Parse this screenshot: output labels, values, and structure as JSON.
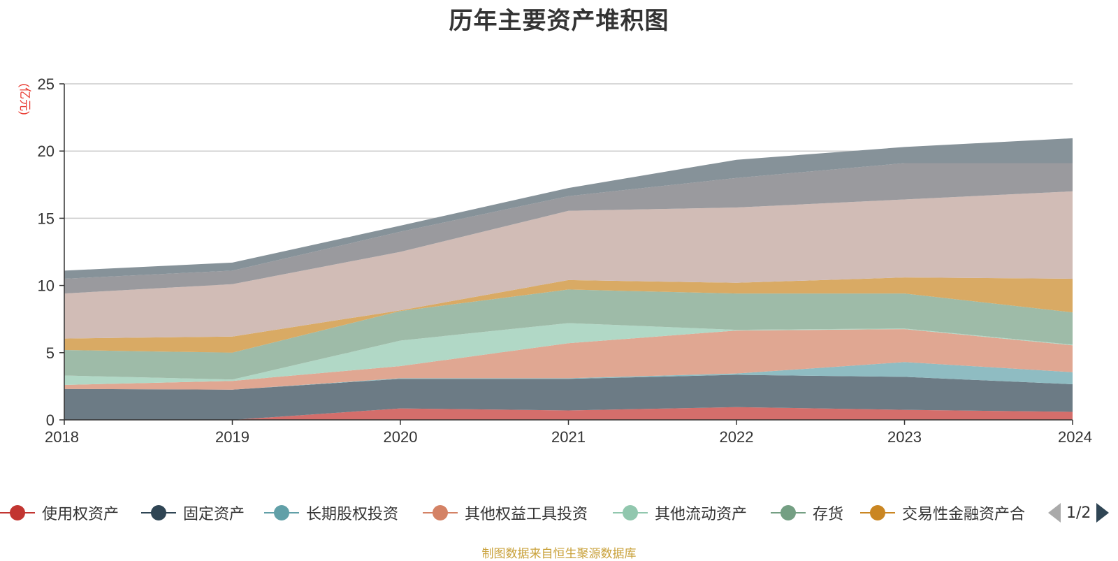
{
  "title": "历年主要资产堆积图",
  "source_note": "制图数据来自恒生聚源数据库",
  "legend_pager": {
    "text": "1/2"
  },
  "chart_data": {
    "type": "area",
    "stacked": true,
    "title": "历年主要资产堆积图",
    "ylabel": "(亿元)",
    "xlabel": "",
    "x": [
      "2018",
      "2019",
      "2020",
      "2021",
      "2022",
      "2023",
      "2024"
    ],
    "ylim": [
      0,
      25
    ],
    "yticks": [
      0,
      5,
      10,
      15,
      20,
      25
    ],
    "grid": true,
    "legend_position": "bottom",
    "series": [
      {
        "name": "使用权资产",
        "color": "#c23531",
        "fill": "#d46e6b",
        "values": [
          0,
          0,
          0.85,
          0.7,
          0.95,
          0.75,
          0.6
        ]
      },
      {
        "name": "固定资产",
        "color": "#2f4554",
        "fill": "#6c7b85",
        "values": [
          2.3,
          2.25,
          2.2,
          2.35,
          2.4,
          2.45,
          2.05
        ]
      },
      {
        "name": "长期股权投资",
        "color": "#61a0a8",
        "fill": "#8fbcc2",
        "values": [
          0,
          0,
          0.05,
          0.05,
          0.1,
          1.1,
          0.9
        ]
      },
      {
        "name": "其他权益工具投资",
        "color": "#d48265",
        "fill": "#e0a792",
        "values": [
          0.3,
          0.65,
          0.9,
          2.6,
          3.2,
          2.45,
          2.0
        ]
      },
      {
        "name": "其他流动资产",
        "color": "#91c7ae",
        "fill": "#b1d8c6",
        "values": [
          0.7,
          0.1,
          1.9,
          1.5,
          0.05,
          0.05,
          0.05
        ]
      },
      {
        "name": "存货",
        "color": "#749f83",
        "fill": "#9ebba8",
        "values": [
          1.9,
          2.0,
          2.2,
          2.5,
          2.7,
          2.6,
          2.4
        ]
      },
      {
        "name": "交易性金融资产合",
        "color": "#ca8622",
        "fill": "#d9aa64",
        "values": [
          0.85,
          1.2,
          0.05,
          0.7,
          0.8,
          1.2,
          2.5
        ]
      },
      {
        "name": "",
        "color": "#bda29a",
        "fill": "#d1bcb6",
        "values": [
          3.35,
          3.9,
          4.35,
          5.15,
          5.6,
          5.8,
          6.5
        ]
      },
      {
        "name": "",
        "color": "#6e7074",
        "fill": "#9a9a9e",
        "values": [
          1.1,
          1.0,
          1.5,
          1.1,
          2.2,
          2.7,
          2.1
        ]
      },
      {
        "name": "",
        "color": "#546570",
        "fill": "#869299",
        "values": [
          0.6,
          0.6,
          0.45,
          0.6,
          1.35,
          1.2,
          1.85
        ]
      }
    ]
  }
}
